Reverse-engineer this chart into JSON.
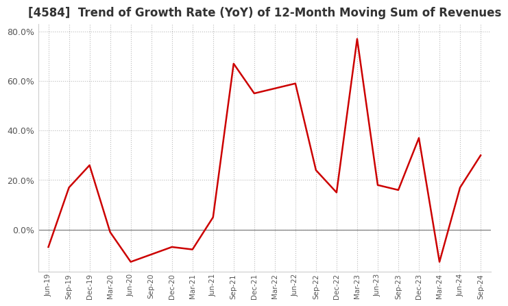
{
  "title": "[4584]  Trend of Growth Rate (YoY) of 12-Month Moving Sum of Revenues",
  "x_labels": [
    "Jun-19",
    "Sep-19",
    "Dec-19",
    "Mar-20",
    "Jun-20",
    "Sep-20",
    "Dec-20",
    "Mar-21",
    "Jun-21",
    "Sep-21",
    "Dec-21",
    "Mar-22",
    "Jun-22",
    "Sep-22",
    "Dec-22",
    "Mar-23",
    "Jun-23",
    "Sep-23",
    "Dec-23",
    "Mar-24",
    "Jun-24",
    "Sep-24"
  ],
  "y_values": [
    -7.0,
    17.0,
    26.0,
    -1.0,
    -13.0,
    -10.0,
    -7.0,
    -8.0,
    5.0,
    67.0,
    55.0,
    57.0,
    59.0,
    24.0,
    15.0,
    77.0,
    18.0,
    16.0,
    37.0,
    -13.0,
    17.0,
    30.0
  ],
  "line_color": "#cc0000",
  "line_width": 1.8,
  "background_color": "#ffffff",
  "plot_bg_color": "#e8e8e8",
  "grid_color": "#bbbbbb",
  "title_fontsize": 12,
  "ylim": [
    -17,
    83
  ],
  "ytick_vals": [
    0,
    20,
    40,
    60,
    80
  ],
  "ytick_labels": [
    "0.0%",
    "20.0%",
    "40.0%",
    "60.0%",
    "80.0%"
  ],
  "zero_line_color": "#888888",
  "spine_color": "#cccccc",
  "tick_color": "#555555"
}
